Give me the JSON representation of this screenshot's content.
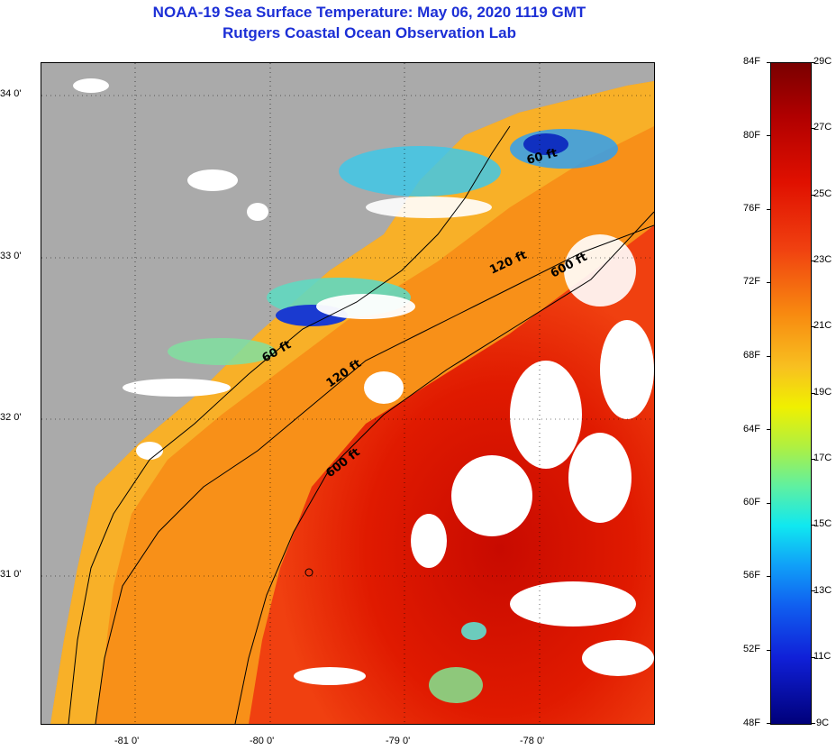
{
  "title": {
    "line1": "NOAA-19 Sea Surface Temperature:  May 06, 2020 1119 GMT",
    "line2": "Rutgers Coastal Ocean Observation Lab"
  },
  "map": {
    "lat_labels": [
      "34 0'",
      "33 0'",
      "32 0'",
      "31 0'"
    ],
    "lon_labels": [
      "-81 0'",
      "-80 0'",
      "-79 0'",
      "-78 0'"
    ],
    "contour_labels": [
      "60 ft",
      "120 ft",
      "600 ft",
      "60 ft",
      "120 ft",
      "600 ft"
    ],
    "colors": {
      "land": "#aaaaaa",
      "cloud": "#ffffff",
      "warm_core": "#d81000",
      "shelf": "#f89010",
      "nearshore": "#f8c030",
      "cold_patch": "#30d0f0",
      "coldest": "#1020b0"
    }
  },
  "colorbar": {
    "fahrenheit_labels": [
      "84F",
      "80F",
      "76F",
      "72F",
      "68F",
      "64F",
      "60F",
      "56F",
      "52F",
      "48F"
    ],
    "celsius_labels": [
      "29C",
      "27C",
      "25C",
      "23C",
      "21C",
      "19C",
      "17C",
      "15C",
      "13C",
      "11C",
      "9C"
    ]
  }
}
